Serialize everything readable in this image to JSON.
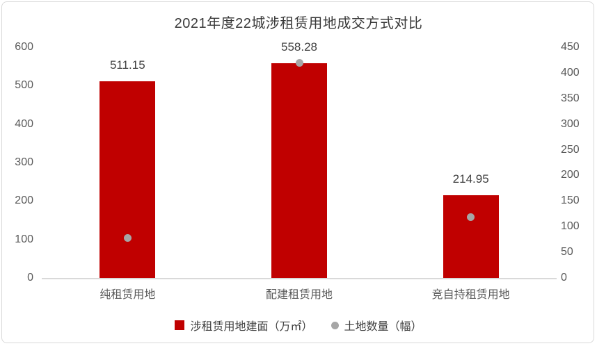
{
  "chart_data": {
    "type": "bar",
    "title": "2021年度22城涉租赁用地成交方式对比",
    "categories": [
      "纯租赁用地",
      "配建租赁用地",
      "竞自持租赁用地"
    ],
    "series": [
      {
        "name": "涉租赁用地建面（万㎡）",
        "type": "bar",
        "axis": "left",
        "color": "#c00000",
        "values": [
          511.15,
          558.28,
          214.95
        ],
        "data_labels": [
          "511.15",
          "558.28",
          "214.95"
        ]
      },
      {
        "name": "土地数量（幅）",
        "type": "scatter",
        "axis": "right",
        "color": "#a6a6a6",
        "values": [
          78,
          420,
          119
        ]
      }
    ],
    "axes": {
      "left": {
        "min": 0,
        "max": 600,
        "step": 100,
        "ticks": [
          0,
          100,
          200,
          300,
          400,
          500,
          600
        ]
      },
      "right": {
        "min": 0,
        "max": 450,
        "step": 50,
        "ticks": [
          0,
          50,
          100,
          150,
          200,
          250,
          300,
          350,
          400,
          450
        ]
      }
    },
    "legend_position": "bottom",
    "grid": false
  },
  "colors": {
    "bar": "#c00000",
    "dot": "#a6a6a6",
    "baseline": "#d9d9d9",
    "frame_border": "#d9d9d9",
    "background": "#ffffff"
  }
}
